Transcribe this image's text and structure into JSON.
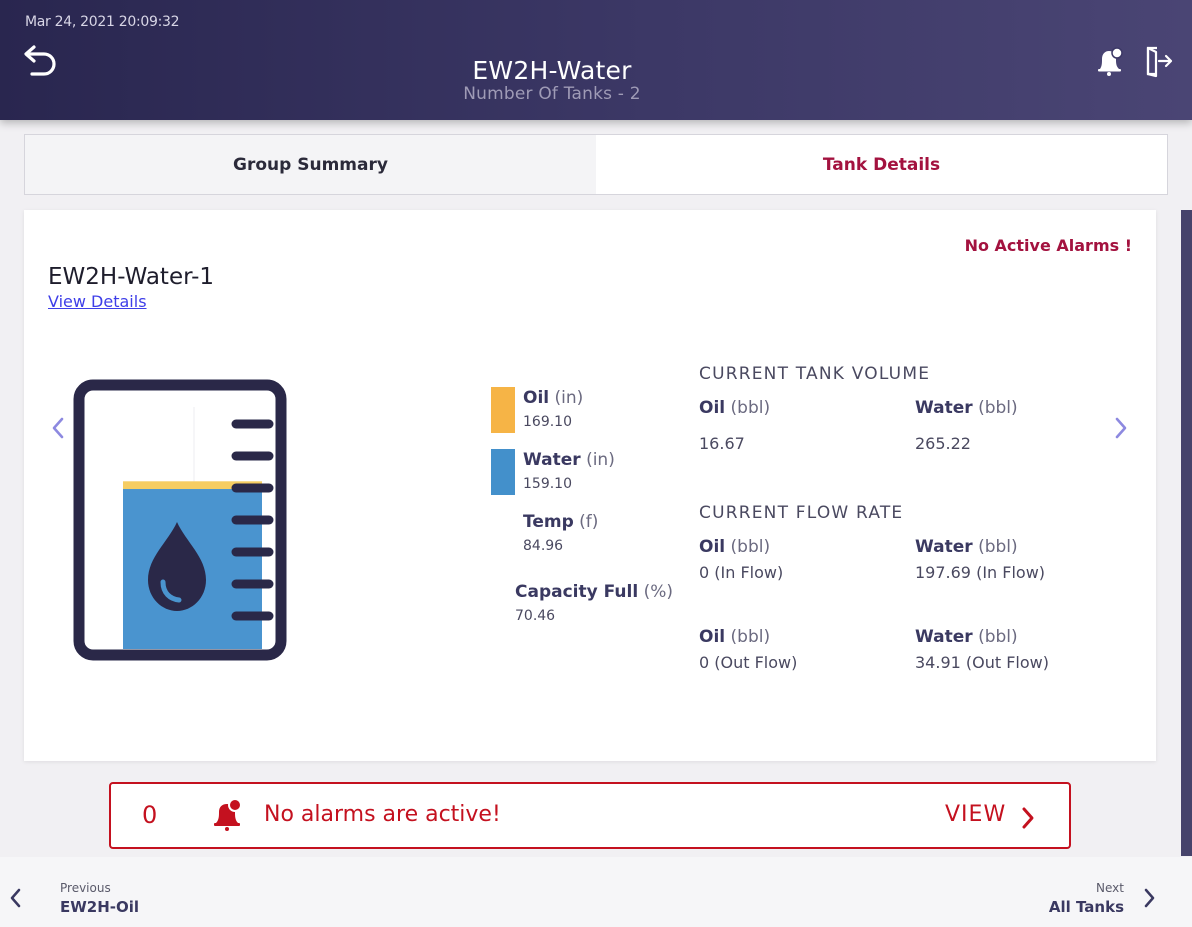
{
  "header": {
    "timestamp": "Mar 24, 2021 20:09:32",
    "title": "EW2H-Water",
    "subtitle": "Number Of Tanks - 2"
  },
  "tabs": [
    {
      "label": "Group Summary",
      "active": false
    },
    {
      "label": "Tank Details",
      "active": true
    }
  ],
  "tank": {
    "alarm_status": "No Active Alarms !",
    "name": "EW2H-Water-1",
    "view_details": "View Details",
    "level_fill": {
      "oil_top": 0.65,
      "water_top": 0.62
    },
    "levels": {
      "oil": {
        "label": "Oil",
        "unit": "(in)",
        "value": "169.10",
        "color": "#f6b446"
      },
      "water": {
        "label": "Water",
        "unit": "(in)",
        "value": "159.10",
        "color": "#4390cb"
      },
      "temp": {
        "label": "Temp",
        "unit": "(f)",
        "value": "84.96"
      },
      "capacity": {
        "label": "Capacity Full",
        "unit": "(%)",
        "value": "70.46"
      }
    },
    "volume": {
      "title": "CURRENT TANK VOLUME",
      "oil": {
        "label": "Oil",
        "unit": "(bbl)",
        "value": "16.67"
      },
      "water": {
        "label": "Water",
        "unit": "(bbl)",
        "value": "265.22"
      }
    },
    "flow": {
      "title": "CURRENT FLOW RATE",
      "in_oil": {
        "label": "Oil",
        "unit": "(bbl)",
        "value": "0 (In Flow)"
      },
      "in_water": {
        "label": "Water",
        "unit": "(bbl)",
        "value": "197.69 (In Flow)"
      },
      "out_oil": {
        "label": "Oil",
        "unit": "(bbl)",
        "value": "0 (Out Flow)"
      },
      "out_water": {
        "label": "Water",
        "unit": "(bbl)",
        "value": "34.91 (Out Flow)"
      }
    }
  },
  "alarms": {
    "count": "0",
    "message": "No alarms are active!",
    "view_label": "VIEW"
  },
  "footer": {
    "prev_caption": "Previous",
    "prev_name": "EW2H-Oil",
    "next_caption": "Next",
    "next_name": "All Tanks"
  },
  "colors": {
    "header_dark": "#29264f",
    "accent": "#a3123f",
    "alarm_red": "#c4111f",
    "tank_outline": "#2a2848",
    "oil": "#f6b446",
    "water": "#4390cb"
  },
  "icons": [
    "back-arrow-icon",
    "bell-alert-icon",
    "logout-icon",
    "chevron-left-icon",
    "chevron-right-icon",
    "water-drop-icon"
  ]
}
